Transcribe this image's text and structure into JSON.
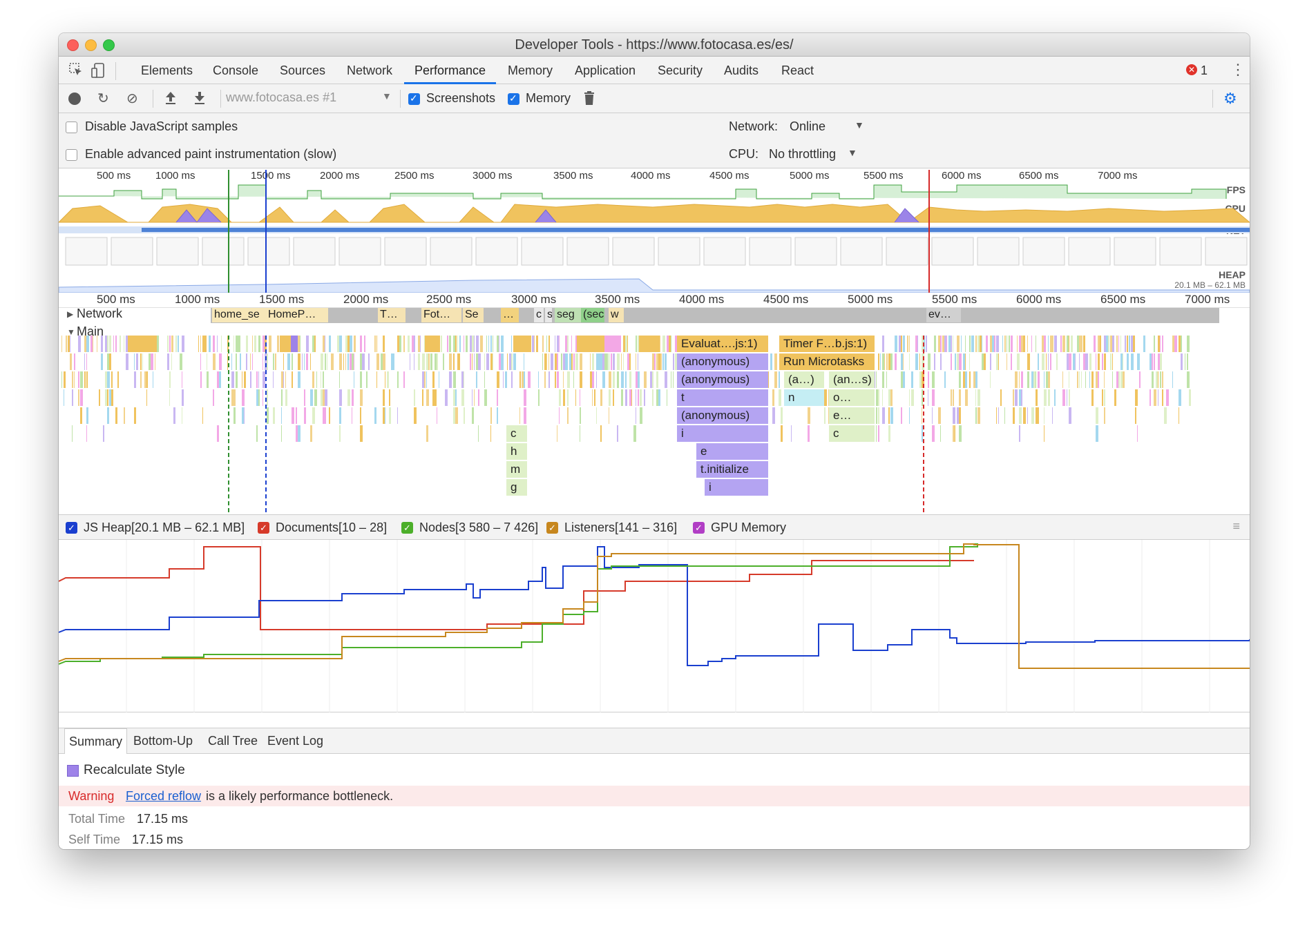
{
  "window": {
    "title": "Developer Tools - https://www.fotocasa.es/es/"
  },
  "tabs": [
    "Elements",
    "Console",
    "Sources",
    "Network",
    "Performance",
    "Memory",
    "Application",
    "Security",
    "Audits",
    "React"
  ],
  "active_tab": "Performance",
  "error_count": "1",
  "toolbar": {
    "profile_select": "www.fotocasa.es #1",
    "screenshots_label": "Screenshots",
    "memory_label": "Memory"
  },
  "settings": {
    "disable_js_samples": "Disable JavaScript samples",
    "advanced_paint": "Enable advanced paint instrumentation (slow)",
    "network_label": "Network:",
    "network_value": "Online",
    "cpu_label": "CPU:",
    "cpu_value": "No throttling"
  },
  "overview": {
    "ticks": [
      "500 ms",
      "1000 ms",
      "1500 ms",
      "2000 ms",
      "2500 ms",
      "3000 ms",
      "3500 ms",
      "4000 ms",
      "4500 ms",
      "5000 ms",
      "5500 ms",
      "6000 ms",
      "6500 ms",
      "7000 ms"
    ],
    "fps_label": "FPS",
    "cpu_label": "CPU",
    "net_label": "NET",
    "heap_label": "HEAP",
    "heap_range": "20.1 MB – 62.1 MB"
  },
  "timeline": {
    "ticks": [
      "500 ms",
      "1000 ms",
      "1500 ms",
      "2000 ms",
      "2500 ms",
      "3000 ms",
      "3500 ms",
      "4000 ms",
      "4500 ms",
      "5000 ms",
      "5500 ms",
      "6000 ms",
      "6500 ms",
      "7000 ms"
    ],
    "network_label": "Network",
    "main_label": "Main",
    "network_requests": [
      "home_se",
      "HomeP…",
      "T…",
      "Fot…",
      "Se",
      "…",
      "c",
      "s",
      "seg",
      "(sec",
      "w",
      "ev…"
    ],
    "flame_labels": [
      "Evaluat….js:1)",
      "(anonymous)",
      "(anonymous)",
      "t",
      "(anonymous)",
      "i",
      "e",
      "t.initialize",
      "i",
      "Timer F…b.js:1)",
      "Run Microtasks",
      "(a…)",
      "(an…s)",
      "n",
      "o…",
      "e…",
      "c",
      "c",
      "h",
      "m",
      "g"
    ]
  },
  "memory_legend": [
    {
      "label": "JS Heap[20.1 MB – 62.1 MB]",
      "color": "#1a3fcf"
    },
    {
      "label": "Documents[10 – 28]",
      "color": "#d63a2a"
    },
    {
      "label": "Nodes[3 580 – 7 426]",
      "color": "#4caf2a"
    },
    {
      "label": "Listeners[141 – 316]",
      "color": "#c7871e"
    },
    {
      "label": "GPU Memory",
      "color": "#b13ec5"
    }
  ],
  "subtabs": [
    "Summary",
    "Bottom-Up",
    "Call Tree",
    "Event Log"
  ],
  "summary": {
    "event_name": "Recalculate Style",
    "warning_label": "Warning",
    "warning_link": "Forced reflow",
    "warning_text": "is a likely performance bottleneck.",
    "total_time_label": "Total Time",
    "total_time_value": "17.15 ms",
    "self_time_label": "Self Time",
    "self_time_value": "17.15 ms"
  }
}
